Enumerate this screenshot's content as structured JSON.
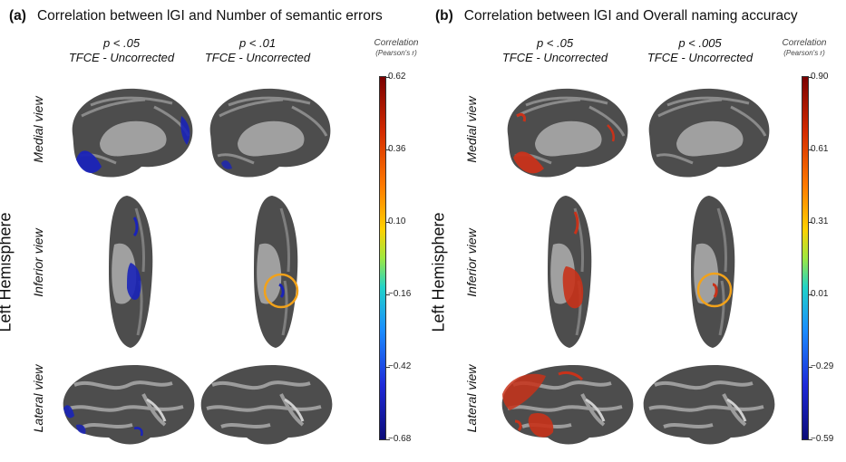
{
  "panel_a": {
    "label": "(a)",
    "title": "Correlation between lGI and Number of semantic errors",
    "columns": [
      {
        "p": "p < .05",
        "method": "TFCE - Uncorrected"
      },
      {
        "p": "p < .01",
        "method": "TFCE - Uncorrected"
      }
    ],
    "colorbar": {
      "title": "Correlation",
      "subtitle": "(Pearson's r)",
      "ticks": [
        "0.62",
        "0.36",
        "0.10",
        "−0.16",
        "−0.42",
        "−0.68"
      ]
    }
  },
  "panel_b": {
    "label": "(b)",
    "title": "Correlation between lGI and Overall naming accuracy",
    "columns": [
      {
        "p": "p < .05",
        "method": "TFCE - Uncorrected"
      },
      {
        "p": "p < .005",
        "method": "TFCE - Uncorrected"
      }
    ],
    "colorbar": {
      "title": "Correlation",
      "subtitle": "(Pearson's r)",
      "ticks": [
        "0.90",
        "0.61",
        "0.31",
        "0.01",
        "−0.29",
        "−0.59"
      ]
    }
  },
  "row_labels": [
    "Medial view",
    "Inferior view",
    "Lateral view"
  ],
  "hemisphere_label": "Left Hemisphere",
  "colors": {
    "brain_dark": "#4a4a4a",
    "brain_light": "#9a9a9a",
    "negative_overlay": "#1a23b8",
    "positive_overlay": "#c8321a",
    "highlight_circle": "#f2a21a"
  }
}
